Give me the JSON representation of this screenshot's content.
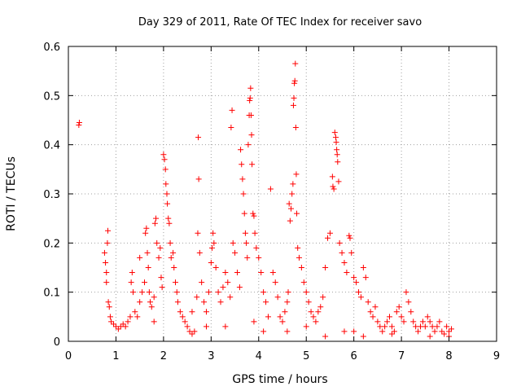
{
  "chart_data": {
    "type": "scatter",
    "title": "Day 329 of 2011, Rate Of TEC Index for receiver savo",
    "xlabel": "GPS time / hours",
    "ylabel": "ROTI / TECUs",
    "xlim": [
      0,
      9
    ],
    "ylim": [
      0,
      0.6
    ],
    "xticks": [
      "0",
      "1",
      "2",
      "3",
      "4",
      "5",
      "6",
      "7",
      "8",
      "9"
    ],
    "yticks": [
      "0",
      "0.1",
      "0.2",
      "0.3",
      "0.4",
      "0.5",
      "0.6"
    ],
    "grid": true,
    "marker": "+",
    "color": "#ff0000",
    "series": [
      {
        "points": [
          [
            0.22,
            0.44
          ],
          [
            0.23,
            0.445
          ],
          [
            0.76,
            0.18
          ],
          [
            0.78,
            0.16
          ],
          [
            0.8,
            0.14
          ],
          [
            0.8,
            0.12
          ],
          [
            0.82,
            0.2
          ],
          [
            0.83,
            0.225
          ],
          [
            0.84,
            0.08
          ],
          [
            0.86,
            0.07
          ],
          [
            0.88,
            0.05
          ],
          [
            0.9,
            0.04
          ],
          [
            0.95,
            0.035
          ],
          [
            1.0,
            0.03
          ],
          [
            1.05,
            0.025
          ],
          [
            1.1,
            0.03
          ],
          [
            1.15,
            0.035
          ],
          [
            1.2,
            0.03
          ],
          [
            1.25,
            0.04
          ],
          [
            1.3,
            0.05
          ],
          [
            1.32,
            0.12
          ],
          [
            1.34,
            0.14
          ],
          [
            1.36,
            0.1
          ],
          [
            1.4,
            0.06
          ],
          [
            1.45,
            0.05
          ],
          [
            1.5,
            0.08
          ],
          [
            1.55,
            0.1
          ],
          [
            1.6,
            0.12
          ],
          [
            1.62,
            0.22
          ],
          [
            1.64,
            0.23
          ],
          [
            1.66,
            0.18
          ],
          [
            1.68,
            0.15
          ],
          [
            1.7,
            0.1
          ],
          [
            1.72,
            0.08
          ],
          [
            1.75,
            0.07
          ],
          [
            1.8,
            0.09
          ],
          [
            1.82,
            0.24
          ],
          [
            1.84,
            0.25
          ],
          [
            1.86,
            0.2
          ],
          [
            1.9,
            0.17
          ],
          [
            1.93,
            0.19
          ],
          [
            1.95,
            0.13
          ],
          [
            1.97,
            0.11
          ],
          [
            2.0,
            0.38
          ],
          [
            2.02,
            0.37
          ],
          [
            2.04,
            0.35
          ],
          [
            2.05,
            0.32
          ],
          [
            2.07,
            0.3
          ],
          [
            2.08,
            0.28
          ],
          [
            2.1,
            0.25
          ],
          [
            2.12,
            0.24
          ],
          [
            2.14,
            0.2
          ],
          [
            2.16,
            0.17
          ],
          [
            2.2,
            0.18
          ],
          [
            2.22,
            0.15
          ],
          [
            2.25,
            0.12
          ],
          [
            2.28,
            0.1
          ],
          [
            2.3,
            0.08
          ],
          [
            2.35,
            0.06
          ],
          [
            2.4,
            0.05
          ],
          [
            2.45,
            0.04
          ],
          [
            2.5,
            0.03
          ],
          [
            2.55,
            0.02
          ],
          [
            2.6,
            0.015
          ],
          [
            2.65,
            0.02
          ],
          [
            2.7,
            0.09
          ],
          [
            2.72,
            0.22
          ],
          [
            2.73,
            0.415
          ],
          [
            2.74,
            0.33
          ],
          [
            2.76,
            0.18
          ],
          [
            2.8,
            0.12
          ],
          [
            2.85,
            0.08
          ],
          [
            2.9,
            0.06
          ],
          [
            2.95,
            0.1
          ],
          [
            3.0,
            0.16
          ],
          [
            3.02,
            0.19
          ],
          [
            3.04,
            0.22
          ],
          [
            3.06,
            0.2
          ],
          [
            3.1,
            0.15
          ],
          [
            3.15,
            0.1
          ],
          [
            3.2,
            0.08
          ],
          [
            3.25,
            0.11
          ],
          [
            3.3,
            0.14
          ],
          [
            3.35,
            0.12
          ],
          [
            3.4,
            0.09
          ],
          [
            3.42,
            0.435
          ],
          [
            3.44,
            0.47
          ],
          [
            3.46,
            0.2
          ],
          [
            3.5,
            0.18
          ],
          [
            3.55,
            0.14
          ],
          [
            3.6,
            0.11
          ],
          [
            3.62,
            0.39
          ],
          [
            3.64,
            0.36
          ],
          [
            3.66,
            0.33
          ],
          [
            3.68,
            0.3
          ],
          [
            3.7,
            0.26
          ],
          [
            3.72,
            0.22
          ],
          [
            3.74,
            0.2
          ],
          [
            3.76,
            0.17
          ],
          [
            3.78,
            0.4
          ],
          [
            3.8,
            0.46
          ],
          [
            3.81,
            0.49
          ],
          [
            3.82,
            0.495
          ],
          [
            3.83,
            0.515
          ],
          [
            3.84,
            0.46
          ],
          [
            3.85,
            0.42
          ],
          [
            3.86,
            0.36
          ],
          [
            3.88,
            0.26
          ],
          [
            3.9,
            0.255
          ],
          [
            3.92,
            0.22
          ],
          [
            3.95,
            0.19
          ],
          [
            4.0,
            0.17
          ],
          [
            4.05,
            0.14
          ],
          [
            4.1,
            0.1
          ],
          [
            4.15,
            0.08
          ],
          [
            4.2,
            0.05
          ],
          [
            4.25,
            0.31
          ],
          [
            4.3,
            0.14
          ],
          [
            4.35,
            0.12
          ],
          [
            4.4,
            0.09
          ],
          [
            4.45,
            0.05
          ],
          [
            4.5,
            0.04
          ],
          [
            4.55,
            0.06
          ],
          [
            4.6,
            0.08
          ],
          [
            4.62,
            0.1
          ],
          [
            4.64,
            0.28
          ],
          [
            4.66,
            0.245
          ],
          [
            4.68,
            0.27
          ],
          [
            4.7,
            0.3
          ],
          [
            4.72,
            0.32
          ],
          [
            4.73,
            0.48
          ],
          [
            4.74,
            0.495
          ],
          [
            4.75,
            0.525
          ],
          [
            4.76,
            0.53
          ],
          [
            4.77,
            0.565
          ],
          [
            4.78,
            0.435
          ],
          [
            4.79,
            0.34
          ],
          [
            4.8,
            0.26
          ],
          [
            4.82,
            0.19
          ],
          [
            4.85,
            0.17
          ],
          [
            4.9,
            0.15
          ],
          [
            4.95,
            0.12
          ],
          [
            5.0,
            0.1
          ],
          [
            5.05,
            0.08
          ],
          [
            5.1,
            0.06
          ],
          [
            5.15,
            0.05
          ],
          [
            5.2,
            0.04
          ],
          [
            5.25,
            0.06
          ],
          [
            5.3,
            0.07
          ],
          [
            5.35,
            0.09
          ],
          [
            5.4,
            0.15
          ],
          [
            5.45,
            0.21
          ],
          [
            5.5,
            0.22
          ],
          [
            5.55,
            0.335
          ],
          [
            5.56,
            0.315
          ],
          [
            5.58,
            0.31
          ],
          [
            5.6,
            0.425
          ],
          [
            5.62,
            0.415
          ],
          [
            5.63,
            0.405
          ],
          [
            5.64,
            0.39
          ],
          [
            5.65,
            0.38
          ],
          [
            5.66,
            0.365
          ],
          [
            5.68,
            0.325
          ],
          [
            5.7,
            0.2
          ],
          [
            5.75,
            0.18
          ],
          [
            5.8,
            0.16
          ],
          [
            5.85,
            0.14
          ],
          [
            5.9,
            0.215
          ],
          [
            5.92,
            0.21
          ],
          [
            5.95,
            0.18
          ],
          [
            6.0,
            0.13
          ],
          [
            6.05,
            0.12
          ],
          [
            6.1,
            0.1
          ],
          [
            6.15,
            0.09
          ],
          [
            6.2,
            0.15
          ],
          [
            6.25,
            0.13
          ],
          [
            6.3,
            0.08
          ],
          [
            6.35,
            0.06
          ],
          [
            6.4,
            0.05
          ],
          [
            6.45,
            0.07
          ],
          [
            6.5,
            0.04
          ],
          [
            6.55,
            0.03
          ],
          [
            6.6,
            0.02
          ],
          [
            6.65,
            0.03
          ],
          [
            6.7,
            0.04
          ],
          [
            6.75,
            0.05
          ],
          [
            6.8,
            0.03
          ],
          [
            6.85,
            0.02
          ],
          [
            6.9,
            0.06
          ],
          [
            6.95,
            0.07
          ],
          [
            7.0,
            0.05
          ],
          [
            7.05,
            0.04
          ],
          [
            7.1,
            0.1
          ],
          [
            7.15,
            0.08
          ],
          [
            7.2,
            0.06
          ],
          [
            7.25,
            0.04
          ],
          [
            7.3,
            0.03
          ],
          [
            7.35,
            0.02
          ],
          [
            7.4,
            0.03
          ],
          [
            7.45,
            0.04
          ],
          [
            7.5,
            0.03
          ],
          [
            7.55,
            0.05
          ],
          [
            7.6,
            0.04
          ],
          [
            7.65,
            0.03
          ],
          [
            7.7,
            0.02
          ],
          [
            7.75,
            0.03
          ],
          [
            7.8,
            0.04
          ],
          [
            7.85,
            0.02
          ],
          [
            7.9,
            0.015
          ],
          [
            7.95,
            0.03
          ],
          [
            8.0,
            0.02
          ],
          [
            8.05,
            0.025
          ],
          [
            1.5,
            0.17
          ],
          [
            1.8,
            0.04
          ],
          [
            2.6,
            0.06
          ],
          [
            3.3,
            0.03
          ],
          [
            4.1,
            0.02
          ],
          [
            5.0,
            0.03
          ],
          [
            5.8,
            0.02
          ],
          [
            6.2,
            0.01
          ],
          [
            6.8,
            0.015
          ],
          [
            7.6,
            0.01
          ],
          [
            8.0,
            0.01
          ],
          [
            3.9,
            0.04
          ],
          [
            2.9,
            0.03
          ],
          [
            4.6,
            0.02
          ],
          [
            5.4,
            0.01
          ],
          [
            6.0,
            0.02
          ]
        ]
      }
    ]
  }
}
